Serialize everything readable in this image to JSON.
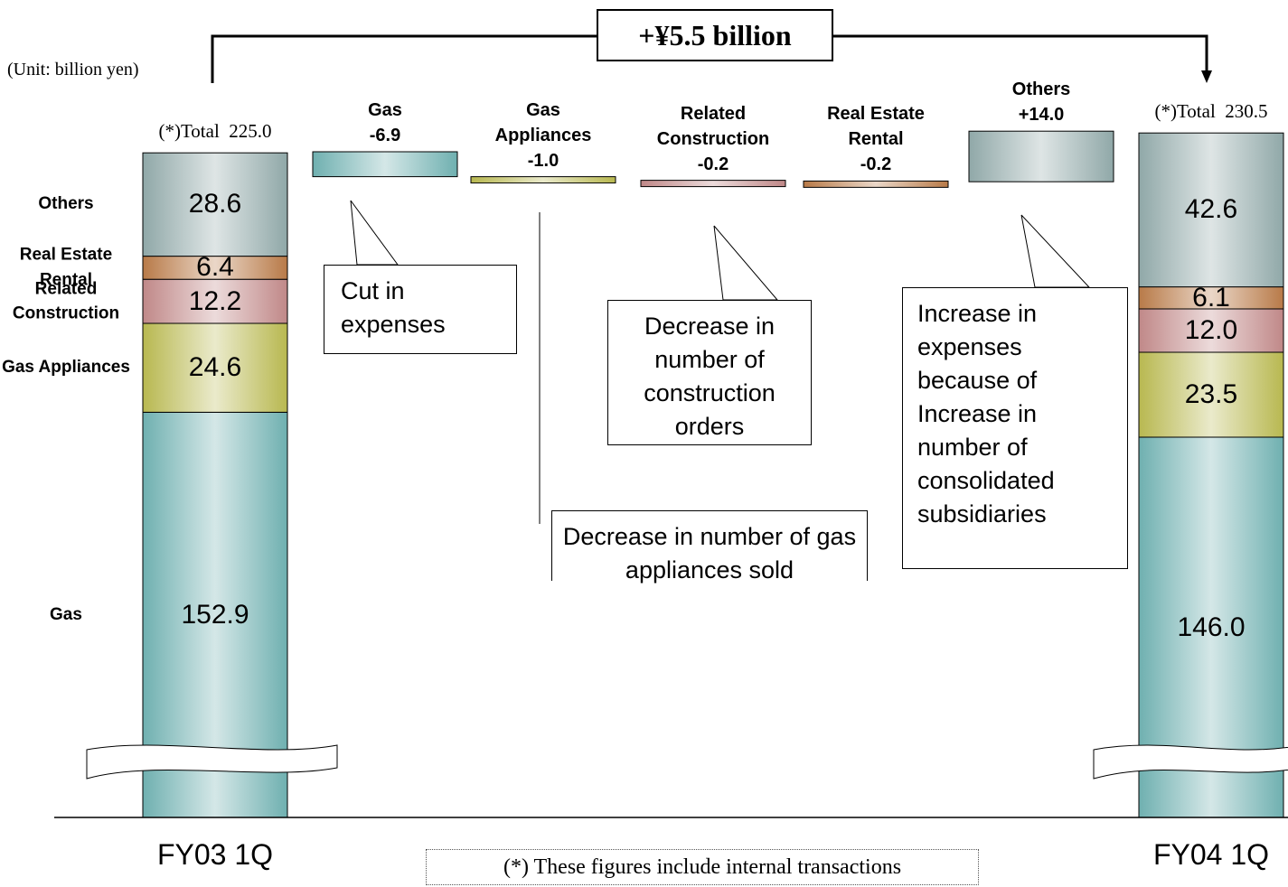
{
  "chart_data": {
    "type": "waterfall",
    "title": "+¥5.5 billion",
    "unit": "(Unit: billion yen)",
    "total_prefix": "(*)Total",
    "categories": [
      "Gas",
      "Gas Appliances",
      "Related Construction",
      "Real Estate Rental",
      "Others"
    ],
    "colors": [
      "#6fb0b0",
      "#b8b850",
      "#c08888",
      "#b87a48",
      "#90a8a8"
    ],
    "stacks": [
      {
        "label": "FY03 1Q",
        "total": 225.0,
        "total_label": "225.0",
        "values": [
          152.9,
          24.6,
          12.2,
          6.4,
          28.6
        ],
        "value_labels": [
          "152.9",
          "24.6",
          "12.2",
          "6.4",
          "28.6"
        ]
      },
      {
        "label": "FY04 1Q",
        "total": 230.5,
        "total_label": "230.5",
        "values": [
          146.0,
          23.5,
          12.0,
          6.1,
          42.6
        ],
        "value_labels": [
          "146.0",
          "23.5",
          "12.0",
          "6.1",
          "42.6"
        ]
      }
    ],
    "changes": {
      "values": [
        -6.9,
        -1.0,
        -0.2,
        -0.2,
        14.0
      ],
      "value_labels": [
        "-6.9",
        "-1.0",
        "-0.2",
        "-0.2",
        "+14.0"
      ]
    },
    "annotations": [
      "Cut in expenses",
      "Decrease in number of gas appliances sold",
      "Decrease in number of construction orders",
      "Increase in expenses because of Increase in number of consolidated subsidiaries"
    ],
    "footnote": "(*) These figures include internal transactions"
  }
}
